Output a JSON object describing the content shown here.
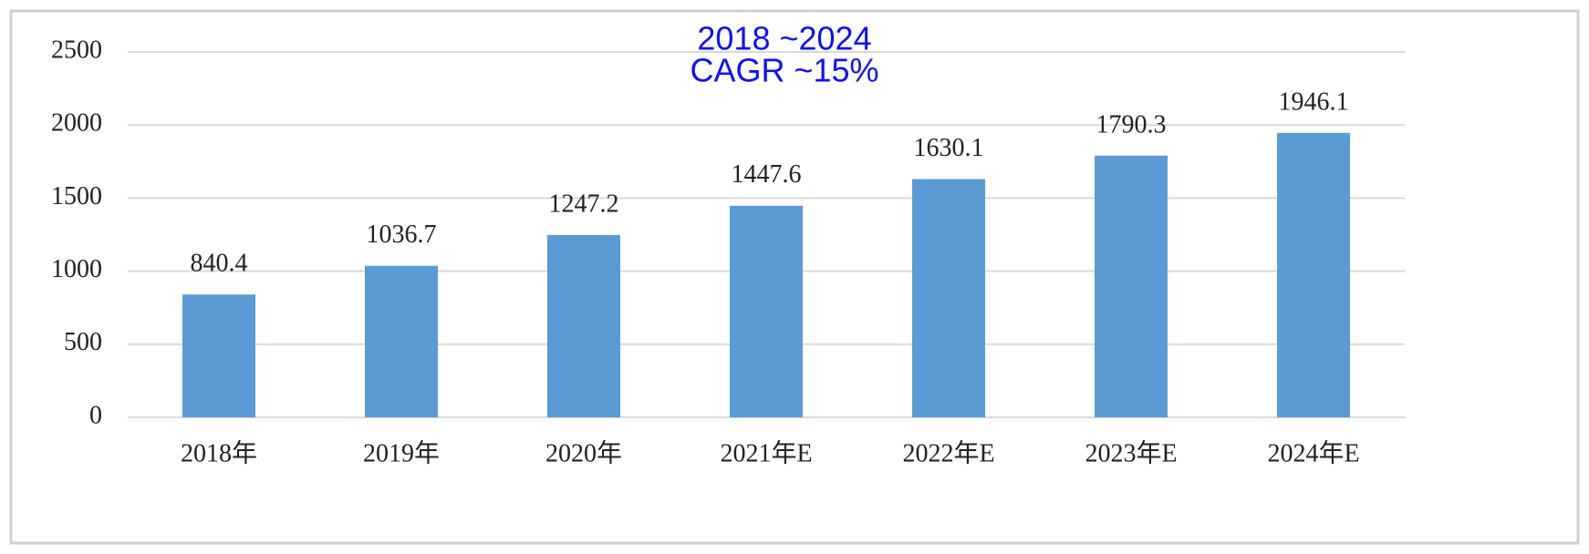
{
  "chart_data": {
    "type": "bar",
    "annotations": [
      "2018 ~2024",
      "CAGR ~15%"
    ],
    "categories": [
      "2018年",
      "2019年",
      "2020年",
      "2021年E",
      "2022年E",
      "2023年E",
      "2024年E"
    ],
    "values": [
      840.4,
      1036.7,
      1247.2,
      1447.6,
      1630.1,
      1790.3,
      1946.1
    ],
    "color": "#5b9bd5",
    "ylim": [
      0,
      2500
    ],
    "yticks": [
      0,
      500,
      1000,
      1500,
      2000,
      2500
    ],
    "grid": true
  }
}
